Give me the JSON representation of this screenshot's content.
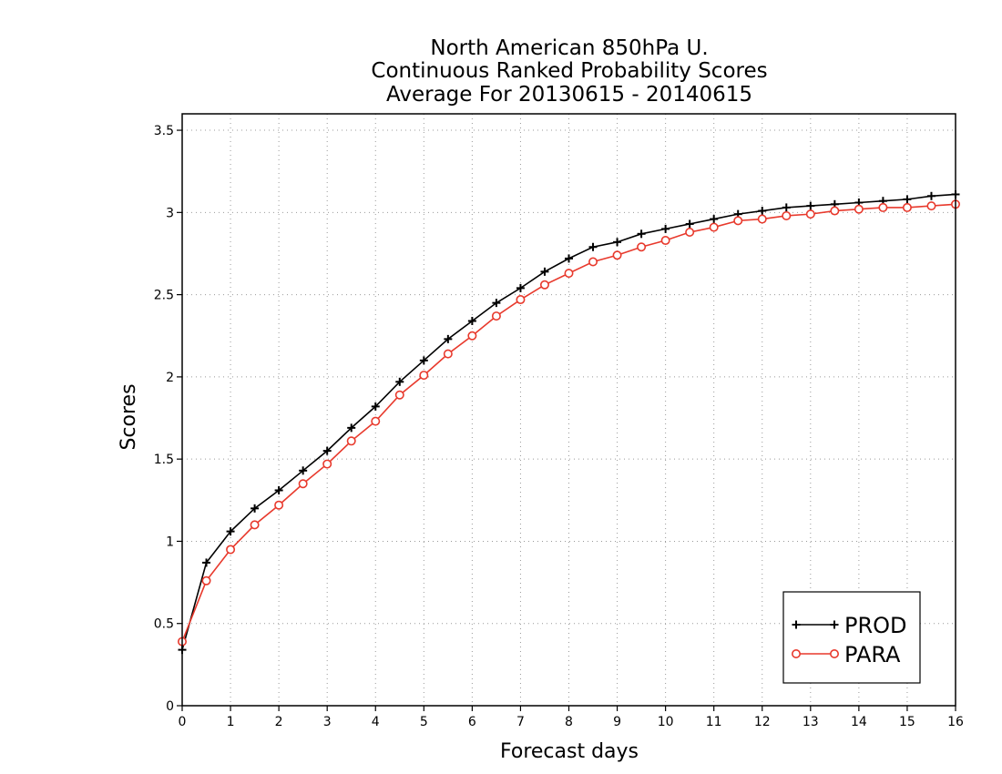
{
  "chart_data": {
    "type": "line",
    "title_lines": [
      "North American 850hPa U.",
      "Continuous Ranked Probability Scores",
      "Average For 20130615 - 20140615"
    ],
    "xlabel": "Forecast days",
    "ylabel": "Scores",
    "xlim": [
      0,
      16
    ],
    "ylim": [
      0,
      3.6
    ],
    "xticks": [
      0,
      1,
      2,
      3,
      4,
      5,
      6,
      7,
      8,
      9,
      10,
      11,
      12,
      13,
      14,
      15,
      16
    ],
    "yticks": [
      0,
      0.5,
      1,
      1.5,
      2,
      2.5,
      3,
      3.5
    ],
    "ytick_labels": [
      "0",
      "0.5",
      "1",
      "1.5",
      "2",
      "2.5",
      "3",
      "3.5"
    ],
    "grid": true,
    "legend_position": "bottom-right",
    "x": [
      0,
      0.5,
      1,
      1.5,
      2,
      2.5,
      3,
      3.5,
      4,
      4.5,
      5,
      5.5,
      6,
      6.5,
      7,
      7.5,
      8,
      8.5,
      9,
      9.5,
      10,
      10.5,
      11,
      11.5,
      12,
      12.5,
      13,
      13.5,
      14,
      14.5,
      15,
      15.5,
      16
    ],
    "series": [
      {
        "name": "PROD",
        "color": "#000000",
        "marker": "plus",
        "values": [
          0.34,
          0.87,
          1.06,
          1.2,
          1.31,
          1.43,
          1.55,
          1.69,
          1.82,
          1.97,
          2.1,
          2.23,
          2.34,
          2.45,
          2.54,
          2.64,
          2.72,
          2.79,
          2.82,
          2.87,
          2.9,
          2.93,
          2.96,
          2.99,
          3.01,
          3.03,
          3.04,
          3.05,
          3.06,
          3.07,
          3.08,
          3.1,
          3.11
        ]
      },
      {
        "name": "PARA",
        "color": "#e8392c",
        "marker": "circle",
        "values": [
          0.39,
          0.76,
          0.95,
          1.1,
          1.22,
          1.35,
          1.47,
          1.61,
          1.73,
          1.89,
          2.01,
          2.14,
          2.25,
          2.37,
          2.47,
          2.56,
          2.63,
          2.7,
          2.74,
          2.79,
          2.83,
          2.88,
          2.91,
          2.95,
          2.96,
          2.98,
          2.99,
          3.01,
          3.02,
          3.03,
          3.03,
          3.04,
          3.05
        ]
      }
    ]
  }
}
